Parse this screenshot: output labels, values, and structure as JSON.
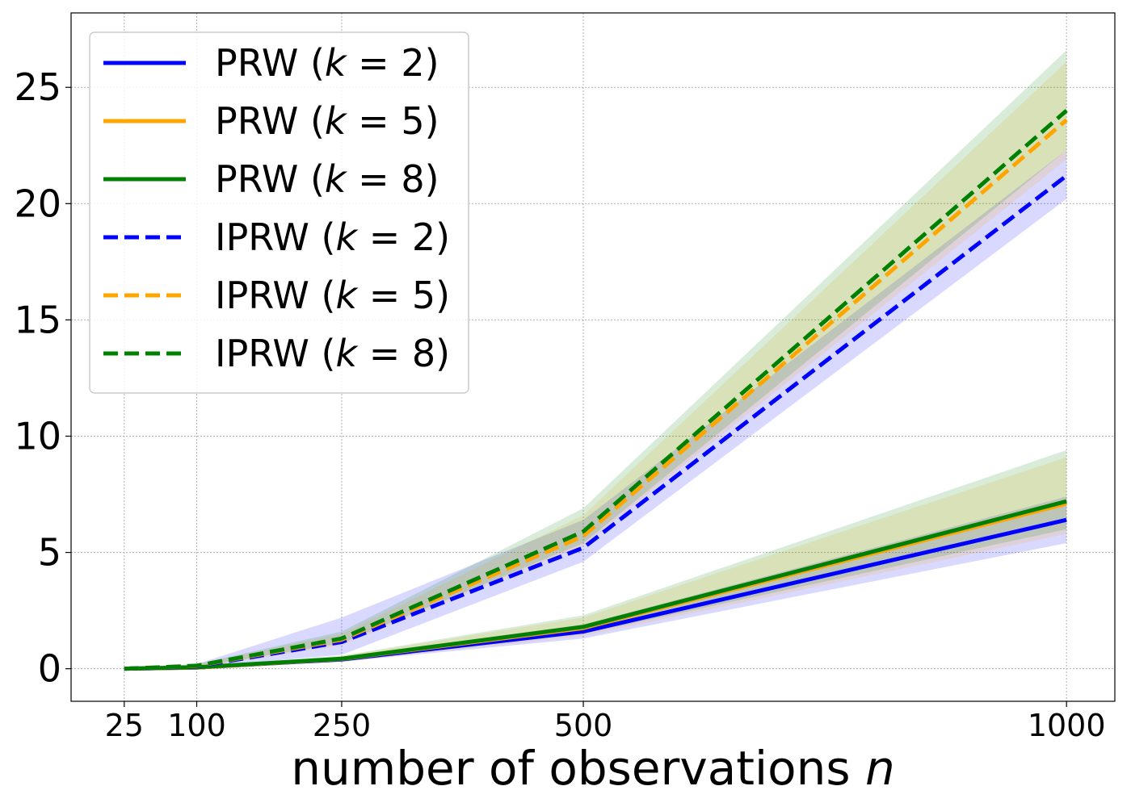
{
  "chart_data": {
    "type": "line",
    "title": "",
    "xlabel_prefix": "number of observations ",
    "xlabel_var": "n",
    "ylabel": "",
    "x": [
      25,
      100,
      250,
      500,
      1000
    ],
    "x_tick_labels": [
      "25",
      "100",
      "250",
      "500",
      "1000"
    ],
    "y_ticks": [
      0,
      5,
      10,
      15,
      20,
      25
    ],
    "y_tick_labels": [
      "0",
      "5",
      "10",
      "15",
      "20",
      "25"
    ],
    "xlim": [
      -30,
      1050
    ],
    "ylim": [
      -1.4,
      28.2
    ],
    "grid": true,
    "legend_position": "top-left",
    "colors": {
      "k2": "#0000ff",
      "k5": "#ffa500",
      "k8": "#008000",
      "grid": "#b0b0b0"
    },
    "series": [
      {
        "name": "PRW (k = 2)",
        "label_prefix": "PRW (",
        "label_var": "k",
        "label_suffix": " = 2)",
        "color_key": "k2",
        "dashed": false,
        "values": [
          0.0,
          0.05,
          0.4,
          1.6,
          6.4
        ],
        "lower": [
          0.0,
          0.02,
          0.3,
          1.3,
          5.4
        ],
        "upper": [
          0.0,
          0.08,
          0.5,
          1.9,
          7.4
        ]
      },
      {
        "name": "PRW (k = 5)",
        "label_prefix": "PRW (",
        "label_var": "k",
        "label_suffix": " = 5)",
        "color_key": "k5",
        "dashed": false,
        "values": [
          0.0,
          0.05,
          0.42,
          1.75,
          7.1
        ],
        "lower": [
          0.0,
          0.02,
          0.3,
          1.4,
          5.8
        ],
        "upper": [
          0.0,
          0.08,
          0.54,
          2.2,
          9.1
        ]
      },
      {
        "name": "PRW (k = 8)",
        "label_prefix": "PRW (",
        "label_var": "k",
        "label_suffix": " = 8)",
        "color_key": "k8",
        "dashed": false,
        "values": [
          0.0,
          0.06,
          0.43,
          1.8,
          7.2
        ],
        "lower": [
          0.0,
          0.02,
          0.3,
          1.5,
          6.0
        ],
        "upper": [
          0.0,
          0.09,
          0.56,
          2.3,
          9.4
        ]
      },
      {
        "name": "IPRW (k = 2)",
        "label_prefix": "IPRW (",
        "label_var": "k",
        "label_suffix": " = 2)",
        "color_key": "k2",
        "dashed": true,
        "values": [
          0.0,
          0.1,
          1.15,
          5.2,
          21.2
        ],
        "lower": [
          0.0,
          0.05,
          0.6,
          4.6,
          20.2
        ],
        "upper": [
          0.0,
          0.2,
          2.2,
          6.4,
          22.3
        ]
      },
      {
        "name": "IPRW (k = 5)",
        "label_prefix": "IPRW (",
        "label_var": "k",
        "label_suffix": " = 5)",
        "color_key": "k5",
        "dashed": true,
        "values": [
          0.0,
          0.12,
          1.25,
          5.7,
          23.6
        ],
        "lower": [
          0.0,
          0.06,
          1.0,
          5.3,
          21.9
        ],
        "upper": [
          0.0,
          0.2,
          1.5,
          6.6,
          26.1
        ]
      },
      {
        "name": "IPRW (k = 8)",
        "label_prefix": "IPRW (",
        "label_var": "k",
        "label_suffix": " = 8)",
        "color_key": "k8",
        "dashed": true,
        "values": [
          0.0,
          0.13,
          1.3,
          5.9,
          24.0
        ],
        "lower": [
          0.0,
          0.07,
          1.1,
          5.4,
          22.3
        ],
        "upper": [
          0.0,
          0.2,
          1.6,
          6.9,
          26.6
        ]
      }
    ]
  }
}
